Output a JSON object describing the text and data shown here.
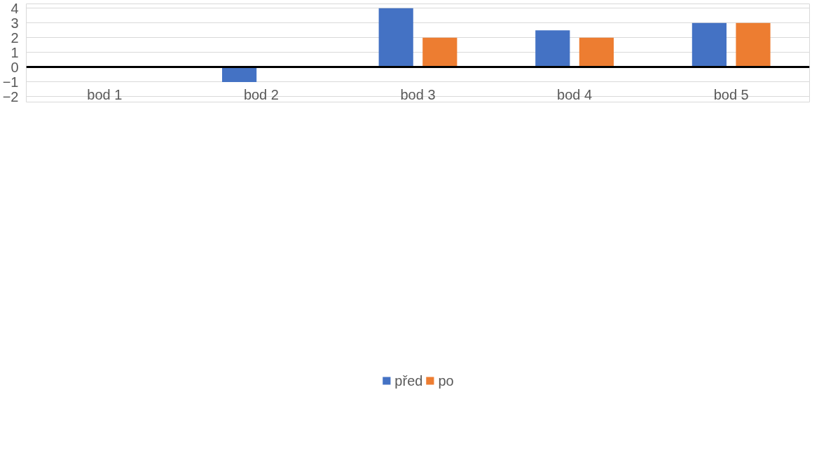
{
  "chart_data": {
    "type": "bar",
    "categories": [
      "bod 1",
      "bod 2",
      "bod 3",
      "bod 4",
      "bod 5"
    ],
    "series": [
      {
        "name": "před",
        "color": "#4472c4",
        "values": [
          0,
          -1,
          4,
          2.5,
          3
        ]
      },
      {
        "name": "po",
        "color": "#ed7d31",
        "values": [
          0,
          0,
          2,
          2,
          3
        ]
      }
    ],
    "ylim": [
      -2,
      4
    ],
    "yticks": [
      -2,
      -1,
      0,
      1,
      2,
      3,
      4
    ],
    "grid": "y",
    "legend": "bottom"
  }
}
